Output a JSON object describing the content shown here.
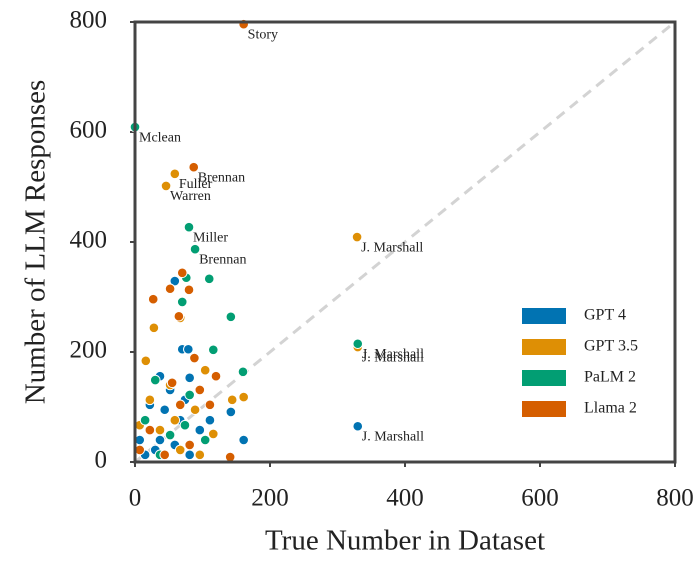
{
  "chart_data": {
    "type": "scatter",
    "x_label": "True Number in Dataset",
    "y_label": "Number of LLM Responses",
    "xlim": [
      0,
      800
    ],
    "ylim": [
      0,
      800
    ],
    "xticks": [
      0,
      200,
      400,
      600,
      800
    ],
    "yticks": [
      0,
      200,
      400,
      600,
      800
    ],
    "identity_line": true,
    "legend": "lower right",
    "series": [
      {
        "name": "GPT 4",
        "color": "#0173b2",
        "x": [
          59,
          70,
          79,
          142,
          161,
          37,
          52,
          81,
          22,
          44,
          67,
          96,
          7,
          30,
          59,
          81,
          15,
          37,
          74,
          111,
          330
        ],
        "values": [
          329,
          205,
          205,
          91,
          40,
          156,
          131,
          153,
          104,
          95,
          76,
          58,
          40,
          22,
          31,
          13,
          13,
          40,
          113,
          76,
          65
        ],
        "point_labels": [
          null,
          null,
          null,
          null,
          null,
          null,
          null,
          null,
          null,
          null,
          null,
          null,
          null,
          null,
          null,
          null,
          null,
          null,
          null,
          null,
          "J. Marshall"
        ]
      },
      {
        "name": "GPT 3.5",
        "color": "#de8f05",
        "x": [
          16,
          28,
          67,
          144,
          161,
          104,
          52,
          22,
          89,
          37,
          67,
          116,
          7,
          96,
          59,
          59,
          46,
          329,
          330
        ],
        "values": [
          184,
          244,
          262,
          113,
          118,
          167,
          140,
          113,
          95,
          58,
          22,
          51,
          67,
          13,
          76,
          524,
          502,
          409,
          209
        ],
        "point_labels": [
          null,
          null,
          null,
          null,
          null,
          null,
          null,
          null,
          null,
          null,
          null,
          null,
          null,
          null,
          null,
          "Fuller",
          "Warren",
          "J. Marshall",
          "J. Marshall"
        ]
      },
      {
        "name": "PaLM 2",
        "color": "#029e73",
        "x": [
          76,
          70,
          110,
          142,
          116,
          160,
          30,
          81,
          15,
          52,
          104,
          37,
          74,
          0,
          80,
          89,
          330
        ],
        "values": [
          335,
          291,
          333,
          264,
          204,
          164,
          149,
          122,
          76,
          49,
          40,
          13,
          67,
          609,
          427,
          387,
          215
        ],
        "point_labels": [
          null,
          null,
          null,
          null,
          null,
          null,
          null,
          null,
          null,
          null,
          null,
          null,
          null,
          "Mclean",
          "Miller",
          "Brennan",
          "J. Marshall"
        ]
      },
      {
        "name": "Llama 2",
        "color": "#d55e00",
        "x": [
          70,
          52,
          27,
          80,
          65,
          88,
          120,
          55,
          96,
          141,
          22,
          81,
          44,
          111,
          7,
          67,
          161,
          87
        ],
        "values": [
          344,
          315,
          296,
          313,
          265,
          189,
          156,
          144,
          131,
          9,
          58,
          31,
          13,
          104,
          22,
          104,
          796,
          536
        ],
        "point_labels": [
          null,
          null,
          null,
          null,
          null,
          null,
          null,
          null,
          null,
          null,
          null,
          null,
          null,
          null,
          null,
          null,
          "Story",
          "Brennan"
        ]
      }
    ]
  }
}
